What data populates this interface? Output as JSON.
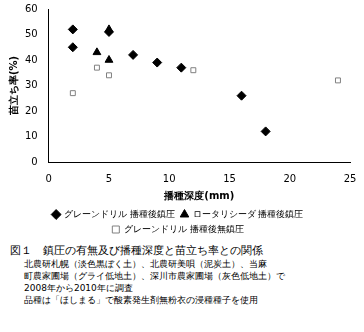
{
  "chart_data": {
    "type": "scatter",
    "title": "図１　鎮圧の有無及び播種深度と苗立ち率との関係",
    "subtitle": [
      "北農研札幌（淡色黒ぼく土）、北農研美唄（泥炭土）、当麻",
      "町農家圃場（グライ低地土）、深川市農家圃場（灰色低地土）で",
      "2008年から2010年に調査",
      "品種は「ほしまる」で酸素発生剤無粉衣の浸種種子を使用"
    ],
    "x_label": "播種深度(mm)",
    "y_label": "苗立ち率(%)",
    "xlim": [
      0,
      25
    ],
    "xticks": [
      0,
      5,
      10,
      15,
      20,
      25
    ],
    "ylim": [
      0,
      60
    ],
    "yticks": [
      0,
      10,
      20,
      30,
      40,
      50,
      60
    ],
    "grid": false,
    "legend": "bottom",
    "series": [
      {
        "name": "グレーンドリル 播種後鎮圧",
        "color": "#000000",
        "marker": "diamond",
        "x": [
          2,
          2,
          5,
          7,
          9,
          11,
          16,
          18
        ],
        "values": [
          52,
          45,
          51,
          42,
          39,
          37,
          26,
          12
        ]
      },
      {
        "name": "ロータリシーダ 播種後鎮圧",
        "color": "#000000",
        "marker": "triangle",
        "x": [
          4,
          5,
          5
        ],
        "values": [
          43,
          52,
          40
        ]
      },
      {
        "name": "グレーンドリル 播種後無鎮圧",
        "color": "#808080",
        "marker": "open_square",
        "x": [
          2,
          4,
          5,
          12,
          24
        ],
        "values": [
          27,
          37,
          34,
          36,
          32
        ]
      }
    ]
  }
}
